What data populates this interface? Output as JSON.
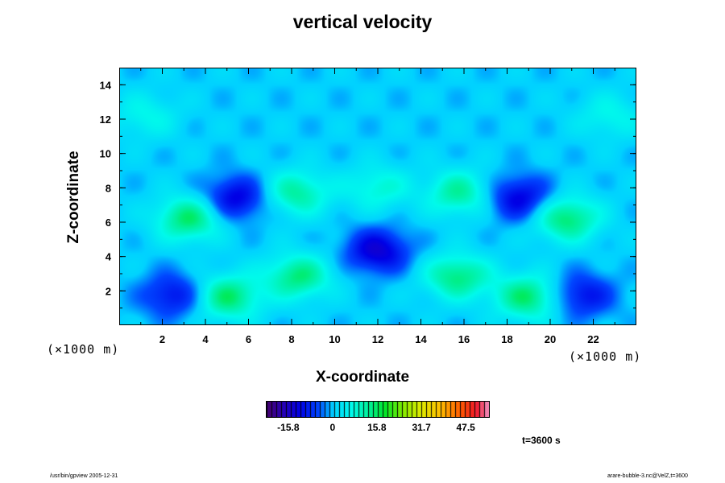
{
  "chart_data": {
    "type": "heatmap",
    "title": "vertical velocity",
    "xlabel": "X-coordinate",
    "ylabel": "Z-coordinate",
    "x_unit_label": "(×1000 m)",
    "y_unit_label": "(×1000 m)",
    "xlim": [
      0,
      24
    ],
    "ylim": [
      0,
      15
    ],
    "x_ticks": [
      "2",
      "4",
      "6",
      "8",
      "10",
      "12",
      "14",
      "16",
      "18",
      "20",
      "22"
    ],
    "y_ticks": [
      "2",
      "4",
      "6",
      "8",
      "10",
      "12",
      "14"
    ],
    "colorbar": {
      "range": [
        -23.8,
        55.5
      ],
      "tick_labels": [
        "-15.8",
        "0",
        "15.8",
        "31.7",
        "47.5"
      ],
      "tick_values": [
        -15.8,
        0,
        15.8,
        31.7,
        47.5
      ]
    },
    "background_value": 0,
    "features": [
      {
        "x": 12.0,
        "z": 4.3,
        "value": -14
      },
      {
        "x": 8.3,
        "z": 2.8,
        "value": 14
      },
      {
        "x": 15.7,
        "z": 2.8,
        "value": 14
      },
      {
        "x": 8.2,
        "z": 7.7,
        "value": 12
      },
      {
        "x": 15.8,
        "z": 7.7,
        "value": 12
      },
      {
        "x": 3.2,
        "z": 6.2,
        "value": 15
      },
      {
        "x": 20.8,
        "z": 6.2,
        "value": 15
      },
      {
        "x": 5.0,
        "z": 1.6,
        "value": 15
      },
      {
        "x": 19.0,
        "z": 1.6,
        "value": 15
      },
      {
        "x": 5.4,
        "z": 7.4,
        "value": -13
      },
      {
        "x": 18.6,
        "z": 7.4,
        "value": -13
      },
      {
        "x": 2.5,
        "z": 1.7,
        "value": -11
      },
      {
        "x": 21.5,
        "z": 1.7,
        "value": -11
      },
      {
        "x": 12.0,
        "z": 8.0,
        "value": 8
      },
      {
        "x": 1.2,
        "z": 12.2,
        "value": 6
      },
      {
        "x": 22.8,
        "z": 12.2,
        "value": 6
      }
    ]
  },
  "time_label": "t=3600 s",
  "footer": {
    "left": "/usr/bin/gpview 2005-12-31",
    "right": "arare-bubble-3.nc@VelZ,t=3600"
  }
}
